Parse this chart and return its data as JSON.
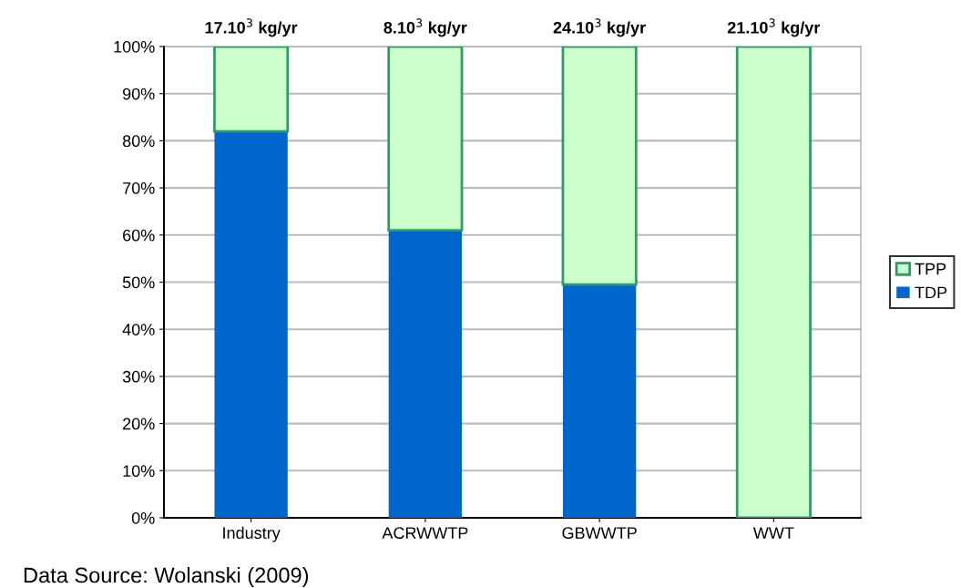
{
  "chart_data": {
    "type": "bar",
    "stacked": true,
    "categories": [
      "Industry",
      "ACRWWTP",
      "GBWWTP",
      "WWT"
    ],
    "series": [
      {
        "name": "TDP",
        "color": "#0066cc",
        "values": [
          82,
          61,
          49.5,
          0
        ]
      },
      {
        "name": "TPP",
        "color": "#ccffcc",
        "values": [
          18,
          39,
          50.5,
          100
        ]
      }
    ],
    "totals": [
      "17.10$^{3}$ kg/yr",
      "8.10$^{3}$ kg/yr",
      "24.10$^{3}$ kg/yr",
      "21.10$^{3}$ kg/yr"
    ],
    "ylim": [
      0,
      100
    ],
    "yticks": [
      {
        "value": 0,
        "label": "0%"
      },
      {
        "value": 10,
        "label": "10%"
      },
      {
        "value": 20,
        "label": "20%"
      },
      {
        "value": 30,
        "label": "30%"
      },
      {
        "value": 40,
        "label": "40%"
      },
      {
        "value": 50,
        "label": "50%"
      },
      {
        "value": 60,
        "label": "60%"
      },
      {
        "value": 70,
        "label": "70%"
      },
      {
        "value": 80,
        "label": "80%"
      },
      {
        "value": 90,
        "label": "90%"
      },
      {
        "value": 100,
        "label": "100%"
      }
    ],
    "grid": "y",
    "legend": "right",
    "annotations": [
      "Data Source: Wolanski (2009)"
    ]
  }
}
